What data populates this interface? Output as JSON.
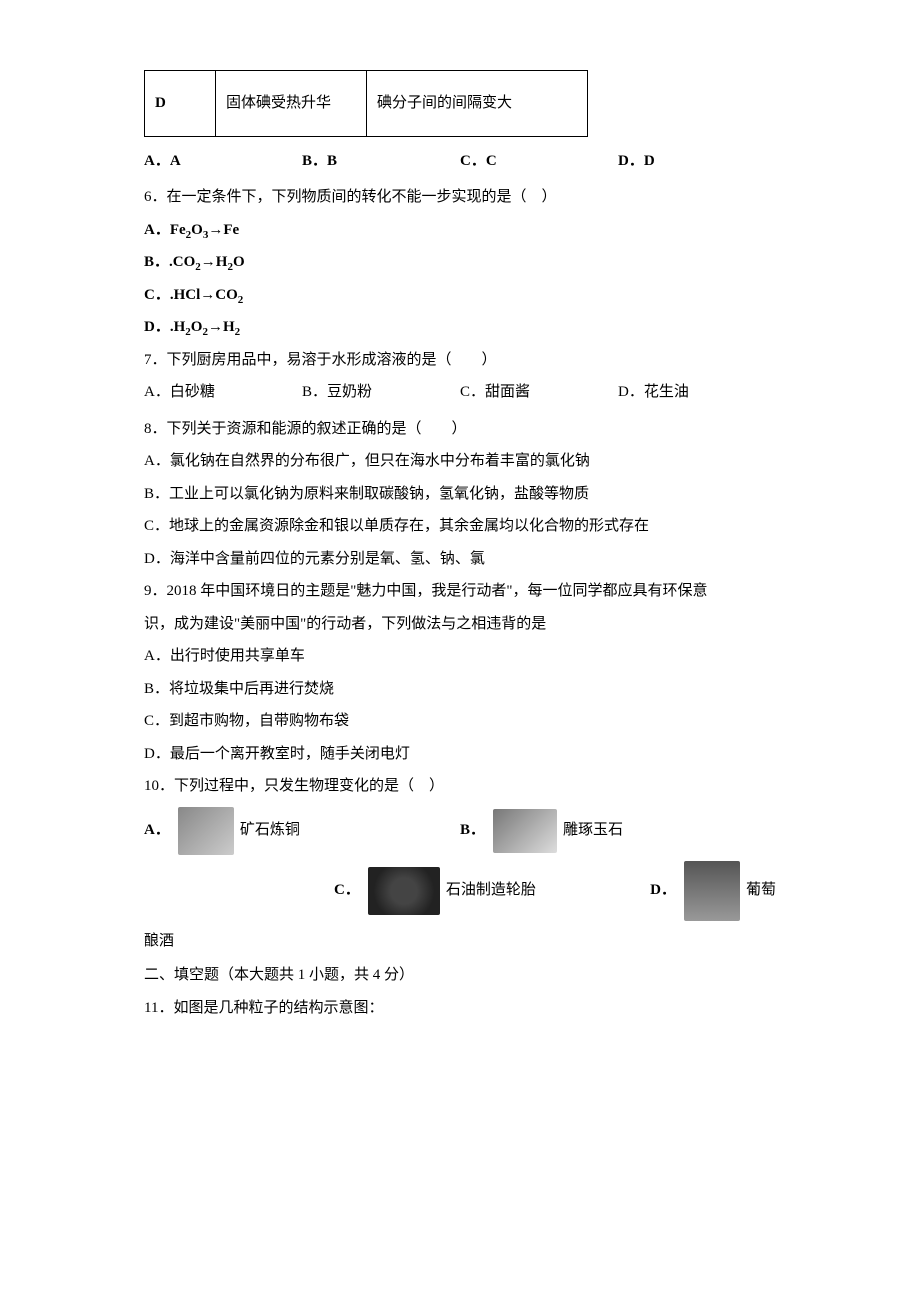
{
  "table": {
    "row_label": "D",
    "col2": "固体碘受热升华",
    "col3": "碘分子间的间隔变大"
  },
  "q5_opts": {
    "a": "A．A",
    "b": "B．B",
    "c": "C．C",
    "d": "D．D"
  },
  "q6": {
    "stem": "6．在一定条件下，下列物质间的转化不能一步实现的是（　）",
    "a_pre": "A．Fe",
    "a_sub1": "2",
    "a_mid": "O",
    "a_sub2": "3",
    "a_post": "→Fe",
    "b_pre": "B．.CO",
    "b_sub1": "2",
    "b_mid": "→H",
    "b_sub2": "2",
    "b_post": "O",
    "c_pre": "C．.HCl→CO",
    "c_sub": "2",
    "d_pre": "D．.H",
    "d_sub1": "2",
    "d_mid": "O",
    "d_sub2": "2",
    "d_mid2": "→H",
    "d_sub3": "2"
  },
  "q7": {
    "stem": "7．下列厨房用品中，易溶于水形成溶液的是（　　）",
    "a": "A．白砂糖",
    "b": "B．豆奶粉",
    "c": "C．甜面酱",
    "d": "D．花生油"
  },
  "q8": {
    "stem": "8．下列关于资源和能源的叙述正确的是（　　）",
    "a": "A．氯化钠在自然界的分布很广，但只在海水中分布着丰富的氯化钠",
    "b": "B．工业上可以氯化钠为原料来制取碳酸钠，氢氧化钠，盐酸等物质",
    "c": "C．地球上的金属资源除金和银以单质存在，其余金属均以化合物的形式存在",
    "d": "D．海洋中含量前四位的元素分别是氧、氢、钠、氯"
  },
  "q9": {
    "stem1": "9．2018 年中国环境日的主题是\"魅力中国，我是行动者\"，每一位同学都应具有环保意",
    "stem2": "识，成为建设\"美丽中国\"的行动者，下列做法与之相违背的是",
    "a": "A．出行时使用共享单车",
    "b": "B．将垃圾集中后再进行焚烧",
    "c": "C．到超市购物，自带购物布袋",
    "d": "D．最后一个离开教室时，随手关闭电灯"
  },
  "q10": {
    "stem": "10．下列过程中，只发生物理变化的是（　）",
    "a_lbl": "A．",
    "a_txt": "矿石炼铜",
    "b_lbl": "B．",
    "b_txt": "雕琢玉石",
    "c_lbl": "C．",
    "c_txt": "石油制造轮胎",
    "d_lbl": "D．",
    "d_txt": "葡萄",
    "cont": "酿酒"
  },
  "section2": "二、填空题（本大题共 1 小题，共 4 分）",
  "q11": "11．如图是几种粒子的结构示意图："
}
